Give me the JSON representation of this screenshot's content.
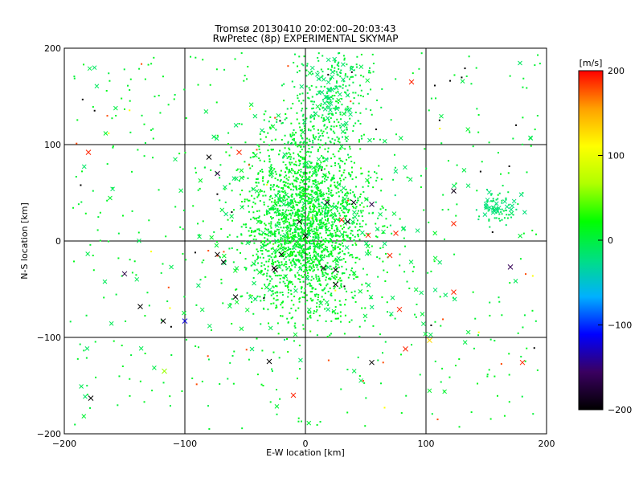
{
  "chart_data": {
    "type": "scatter",
    "title": "Tromsø 20130410 20:02:00–20:03:43",
    "subtitle": "RwPretec (8p) EXPERIMENTAL SKYMAP",
    "xlabel": "E-W location [km]",
    "ylabel": "N-S location [km]",
    "xlim": [
      -200,
      200
    ],
    "ylim": [
      -200,
      200
    ],
    "x_ticks": [
      "-200",
      "-100",
      "0",
      "100",
      "200"
    ],
    "y_ticks": [
      "-200",
      "-100",
      "0",
      "100",
      "200"
    ],
    "grid": true,
    "colorbar": {
      "label": "[m/s]",
      "min": -200,
      "max": 200,
      "ticks": [
        "200",
        "100",
        "0",
        "-100",
        "-200"
      ],
      "colormap": [
        "#000000",
        "#3a0060",
        "#0000ff",
        "#00b0ff",
        "#00e080",
        "#00ff00",
        "#b0ff00",
        "#ffff00",
        "#ffa000",
        "#ff0000"
      ]
    },
    "markers": {
      "cross_meaning": "larger x markers",
      "dot_meaning": "small point markers"
    },
    "series": [
      {
        "values_description": "dense central cluster centred near (0, 20) km, spread about 25 km E-W and 45 km N-S, velocities mostly 0 to 20 m/s",
        "cluster_centre": [
          0,
          20
        ],
        "cluster_spread_km": [
          25,
          45
        ],
        "typical_velocity_m_s": [
          0,
          20
        ]
      }
    ],
    "crosses": [
      {
        "x": -180,
        "y": 92,
        "v": 190
      },
      {
        "x": 88,
        "y": 165,
        "v": 190
      },
      {
        "x": -150,
        "y": -34,
        "v": -170
      },
      {
        "x": -137,
        "y": -68,
        "v": -200
      },
      {
        "x": -118,
        "y": -83,
        "v": -200
      },
      {
        "x": -100,
        "y": -83,
        "v": -120
      },
      {
        "x": -178,
        "y": -163,
        "v": -200
      },
      {
        "x": -117,
        "y": -135,
        "v": 60
      },
      {
        "x": -30,
        "y": -125,
        "v": -200
      },
      {
        "x": -10,
        "y": -160,
        "v": 190
      },
      {
        "x": 55,
        "y": -126,
        "v": -200
      },
      {
        "x": 83,
        "y": -112,
        "v": 190
      },
      {
        "x": 103,
        "y": -103,
        "v": 130
      },
      {
        "x": 180,
        "y": -126,
        "v": 190
      },
      {
        "x": 123,
        "y": 52,
        "v": -190
      },
      {
        "x": 123,
        "y": 18,
        "v": 190
      },
      {
        "x": 170,
        "y": -27,
        "v": -160
      },
      {
        "x": 123,
        "y": -53,
        "v": 190
      },
      {
        "x": 78,
        "y": -71,
        "v": 190
      },
      {
        "x": -58,
        "y": -58,
        "v": -200
      },
      {
        "x": -73,
        "y": -14,
        "v": -200
      },
      {
        "x": -68,
        "y": -22,
        "v": -200
      },
      {
        "x": -25,
        "y": -30,
        "v": -200
      },
      {
        "x": -26,
        "y": -28,
        "v": -200
      },
      {
        "x": -20,
        "y": -14,
        "v": -200
      },
      {
        "x": 25,
        "y": -45,
        "v": -200
      },
      {
        "x": 40,
        "y": 40,
        "v": -190
      },
      {
        "x": 55,
        "y": 38,
        "v": -170
      },
      {
        "x": 30,
        "y": 22,
        "v": 190
      },
      {
        "x": 35,
        "y": 20,
        "v": -180
      },
      {
        "x": 52,
        "y": 6,
        "v": 190
      },
      {
        "x": 70,
        "y": -15,
        "v": 190
      },
      {
        "x": 75,
        "y": 8,
        "v": 190
      },
      {
        "x": -80,
        "y": 87,
        "v": -200
      },
      {
        "x": -73,
        "y": 70,
        "v": -170
      },
      {
        "x": -55,
        "y": 92,
        "v": 190
      },
      {
        "x": -5,
        "y": 20,
        "v": -200
      },
      {
        "x": 0,
        "y": 5,
        "v": -200
      },
      {
        "x": 18,
        "y": 40,
        "v": -180
      },
      {
        "x": 15,
        "y": -28,
        "v": -200
      },
      {
        "x": 25,
        "y": -30,
        "v": -200
      }
    ]
  }
}
